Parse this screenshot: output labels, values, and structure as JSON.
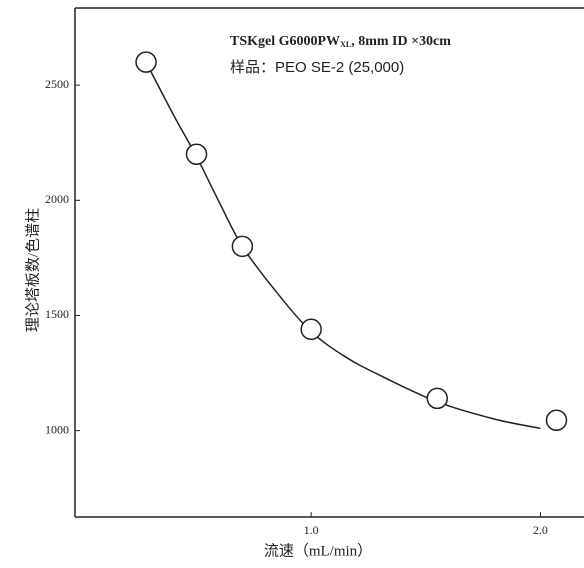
{
  "chart_data": {
    "type": "scatter",
    "annotation": {
      "main": "TSKgel G6000PW",
      "sub": "XL",
      "rest": ", 8mm ID ×30cm"
    },
    "annotation2": "样品：PEO SE-2 (25,000)",
    "y_label": "理论塔板数/色谱柱",
    "x_label": "流速（mL/min）",
    "x": [
      0.28,
      0.5,
      0.7,
      1.0,
      1.55,
      2.07
    ],
    "values": [
      2600,
      2200,
      1800,
      1440,
      1140,
      1045
    ],
    "curve": {
      "x": [
        0.28,
        0.4,
        0.5,
        0.6,
        0.7,
        0.85,
        1.0,
        1.15,
        1.3,
        1.55,
        1.8,
        2.0
      ],
      "values": [
        2600,
        2370,
        2190,
        1990,
        1800,
        1600,
        1430,
        1320,
        1240,
        1125,
        1050,
        1010
      ]
    },
    "xlim": [
      -0.03,
      2.19
    ],
    "ylim": [
      625,
      2835
    ],
    "xticks": [
      {
        "value": 1.0,
        "label": "1.0"
      },
      {
        "value": 2.0,
        "label": "2.0"
      }
    ],
    "yticks": [
      1000,
      1500,
      2000,
      2500
    ]
  }
}
